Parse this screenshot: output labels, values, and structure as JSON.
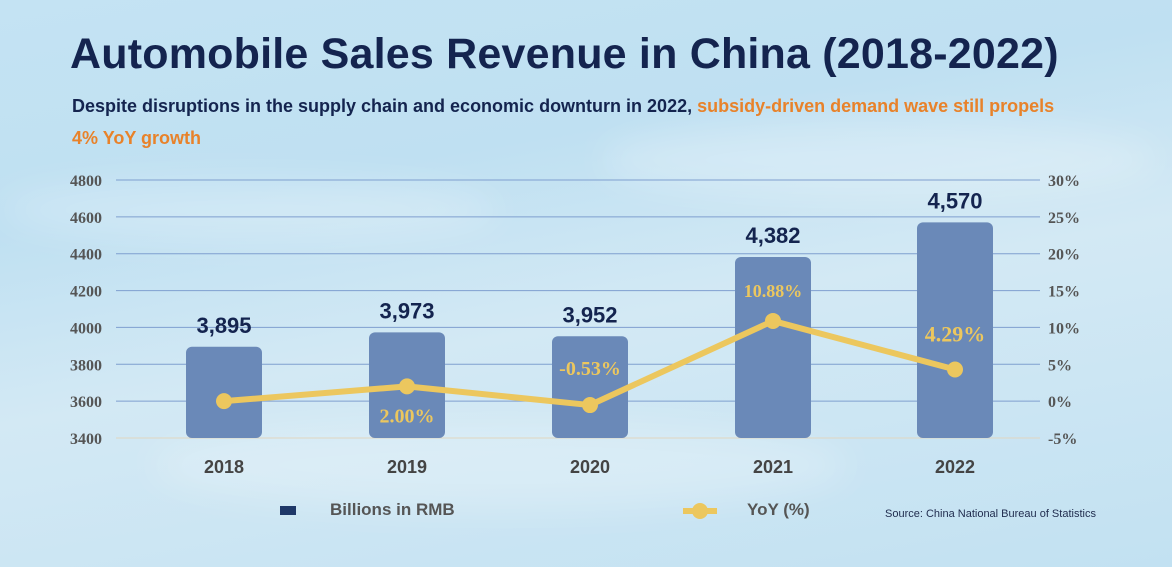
{
  "title": "Automobile Sales Revenue in China (2018-2022)",
  "subtitle": {
    "main": "Despite disruptions in the supply chain and economic downturn in 2022, ",
    "highlight": "subsidy-driven demand wave still propels 4% YoY growth"
  },
  "source": "Source: China National  Bureau of Statistics",
  "colors": {
    "bar": "#6a89b8",
    "line": "#ecc75e",
    "title": "#14244f",
    "highlight": "#e8822a",
    "grid": "#7f9fcf"
  },
  "chart_data": {
    "type": "bar+line",
    "categories": [
      "2018",
      "2019",
      "2020",
      "2021",
      "2022"
    ],
    "series": [
      {
        "name": "Billions in RMB",
        "type": "bar",
        "axis": "left",
        "values": [
          3895,
          3973,
          3952,
          4382,
          4570
        ],
        "labels": [
          "3,895",
          "3,973",
          "3,952",
          "4,382",
          "4,570"
        ]
      },
      {
        "name": "YoY (%)",
        "type": "line",
        "axis": "right",
        "values": [
          0,
          2.0,
          -0.53,
          10.88,
          4.29
        ],
        "labels": [
          "",
          "2.00%",
          "-0.53%",
          "10.88%",
          "4.29%"
        ]
      }
    ],
    "left_axis": {
      "ylim": [
        3400,
        4800
      ],
      "ticks": [
        "3400",
        "3600",
        "3800",
        "4000",
        "4200",
        "4400",
        "4600",
        "4800"
      ]
    },
    "right_axis": {
      "ylim": [
        -5,
        30
      ],
      "ticks": [
        "-5%",
        "0%",
        "5%",
        "10%",
        "15%",
        "20%",
        "25%",
        "30%"
      ]
    },
    "grid": true,
    "legend": "bottom"
  }
}
